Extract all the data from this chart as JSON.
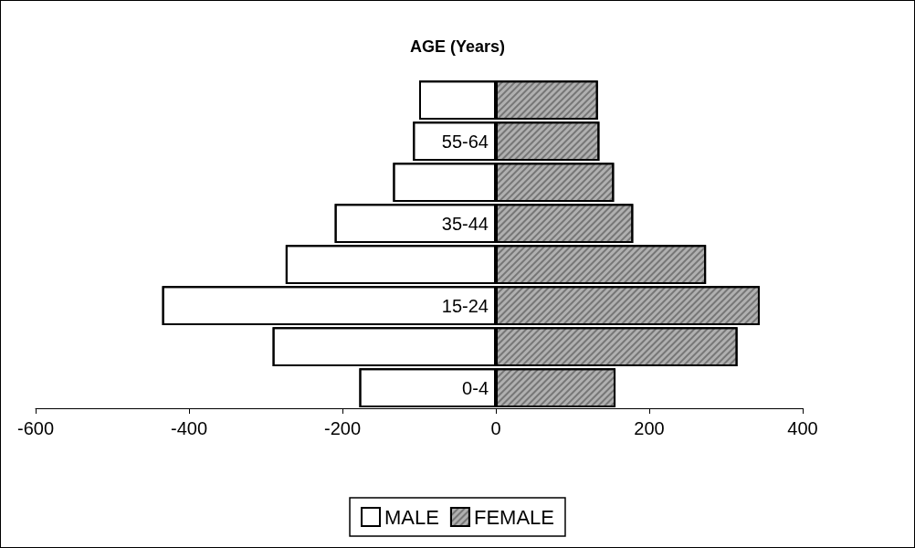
{
  "chart_data": {
    "type": "bar",
    "orientation": "horizontal",
    "title": "AGE (Years)",
    "categories": [
      null,
      "55-64",
      null,
      "35-44",
      null,
      "15-24",
      null,
      "0-4"
    ],
    "series": [
      {
        "name": "MALE",
        "color": "#ffffff",
        "values": [
          -100,
          -108,
          -134,
          -210,
          -274,
          -435,
          -291,
          -178
        ]
      },
      {
        "name": "FEMALE",
        "color": "#b0b0b0",
        "values": [
          133,
          135,
          154,
          179,
          274,
          344,
          315,
          156
        ]
      }
    ],
    "stacked": true,
    "xlim": [
      -600,
      400
    ],
    "xticks": [
      -600,
      -400,
      -200,
      0,
      200,
      400
    ],
    "grid": false,
    "legend": "bottom"
  }
}
